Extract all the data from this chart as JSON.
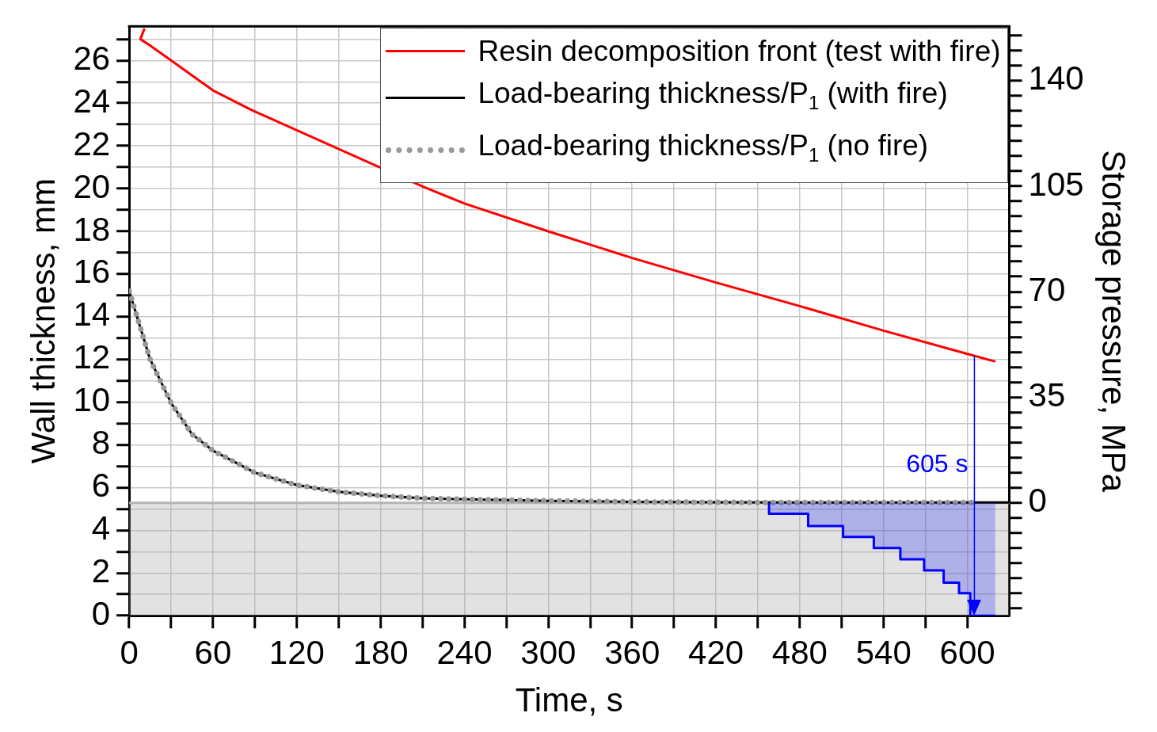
{
  "chart_data": {
    "type": "line",
    "xlabel": "Time, s",
    "ylabel": "Wall thickness, mm",
    "y2label": "Storage pressure, MPa",
    "xlim": [
      0,
      630
    ],
    "ylim": [
      0,
      27.6
    ],
    "y2lim": [
      -37.4,
      158
    ],
    "xticks": [
      0,
      {
        "value": 30,
        "label": null
      },
      60,
      {
        "value": 90,
        "label": null
      },
      120,
      {
        "value": 150,
        "label": null
      },
      180,
      {
        "value": 210,
        "label": null
      },
      240,
      {
        "value": 270,
        "label": null
      },
      300,
      {
        "value": 330,
        "label": null
      },
      360,
      {
        "value": 390,
        "label": null
      },
      420,
      {
        "value": 450,
        "label": null
      },
      480,
      {
        "value": 510,
        "label": null
      },
      540,
      {
        "value": 570,
        "label": null
      },
      600
    ],
    "yticks": [
      0,
      {
        "value": 1,
        "label": null
      },
      2,
      {
        "value": 3,
        "label": null
      },
      4,
      {
        "value": 5,
        "label": null
      },
      6,
      {
        "value": 7,
        "label": null
      },
      8,
      {
        "value": 9,
        "label": null
      },
      10,
      {
        "value": 11,
        "label": null
      },
      12,
      {
        "value": 13,
        "label": null
      },
      14,
      {
        "value": 15,
        "label": null
      },
      16,
      {
        "value": 17,
        "label": null
      },
      18,
      {
        "value": 19,
        "label": null
      },
      20,
      {
        "value": 21,
        "label": null
      },
      22,
      {
        "value": 23,
        "label": null
      },
      24,
      {
        "value": 25,
        "label": null
      },
      26,
      {
        "value": 27,
        "label": null
      }
    ],
    "y2ticks": [
      {
        "value": -35,
        "label": null
      },
      {
        "value": -30,
        "label": null
      },
      {
        "value": -25,
        "label": null
      },
      {
        "value": -20,
        "label": null
      },
      {
        "value": -15,
        "label": null
      },
      {
        "value": -10,
        "label": null
      },
      {
        "value": -5,
        "label": null
      },
      0,
      {
        "value": 5,
        "label": null
      },
      {
        "value": 10,
        "label": null
      },
      {
        "value": 15,
        "label": null
      },
      {
        "value": 20,
        "label": null
      },
      {
        "value": 25,
        "label": null
      },
      {
        "value": 30,
        "label": null
      },
      35,
      {
        "value": 40,
        "label": null
      },
      {
        "value": 45,
        "label": null
      },
      {
        "value": 50,
        "label": null
      },
      {
        "value": 55,
        "label": null
      },
      {
        "value": 60,
        "label": null
      },
      {
        "value": 65,
        "label": null
      },
      70,
      {
        "value": 75,
        "label": null
      },
      {
        "value": 80,
        "label": null
      },
      {
        "value": 85,
        "label": null
      },
      {
        "value": 90,
        "label": null
      },
      {
        "value": 95,
        "label": null
      },
      {
        "value": 100,
        "label": null
      },
      105,
      {
        "value": 110,
        "label": null
      },
      {
        "value": 115,
        "label": null
      },
      {
        "value": 120,
        "label": null
      },
      {
        "value": 125,
        "label": null
      },
      {
        "value": 130,
        "label": null
      },
      {
        "value": 135,
        "label": null
      },
      140,
      {
        "value": 145,
        "label": null
      },
      {
        "value": 150,
        "label": null
      },
      {
        "value": 155,
        "label": null
      }
    ],
    "grid": true,
    "legend": "top right",
    "series": [
      {
        "name": "Resin decomposition front (test with fire)",
        "color": "#ff0000",
        "line_style": "solid",
        "x": [
          11,
          8,
          15,
          30,
          60,
          87,
          120,
          150,
          180,
          210,
          240,
          300,
          360,
          420,
          480,
          540,
          600,
          620
        ],
        "values": [
          27.5,
          27.0,
          26.7,
          26.0,
          24.6,
          23.7,
          null,
          null,
          null,
          20.1,
          19.3,
          18.0,
          16.75,
          15.6,
          14.5,
          13.35,
          12.26,
          11.9
        ]
      },
      {
        "name": "Load-bearing thickness/P$_{1}$ (with fire)",
        "color": "#000000",
        "line_style": "solid",
        "x": [
          0,
          15,
          30,
          45,
          60,
          90,
          120,
          150,
          180,
          210,
          240,
          300,
          360,
          420,
          480,
          540,
          630
        ],
        "values": [
          15.2,
          12.0,
          9.96,
          8.5,
          7.73,
          6.7,
          6.12,
          5.8,
          5.62,
          5.5,
          5.45,
          5.38,
          5.33,
          5.31,
          5.3,
          5.3,
          5.3
        ]
      },
      {
        "name": "Load-bearing thickness/P$_{1}$ (no fire)",
        "color": "#999999",
        "line_style": "dotted",
        "x": [
          0,
          15,
          30,
          45,
          60,
          90,
          120,
          150,
          180,
          210,
          240,
          300,
          360,
          420,
          480,
          540,
          606
        ],
        "values": [
          15.2,
          12.0,
          9.96,
          8.5,
          7.73,
          6.7,
          6.12,
          5.8,
          5.62,
          5.5,
          5.45,
          5.38,
          5.33,
          5.31,
          5.3,
          5.3,
          5.3
        ]
      },
      {
        "type": "step",
        "color": "#0000ff",
        "line_style": "solid",
        "x": [
          458,
          458,
          486,
          511,
          533,
          552,
          569,
          583,
          594,
          602,
          620
        ],
        "values": [
          5.28,
          4.77,
          4.2,
          3.69,
          3.17,
          2.64,
          2.12,
          1.55,
          1.06,
          0,
          0
        ]
      }
    ],
    "ref_lines": [
      {
        "axis": "y",
        "value": 5.28,
        "color": "#b4b4b4"
      },
      {
        "axis": "x",
        "value": 605,
        "label": "605 s",
        "color": "#0000ff"
      }
    ],
    "bands": [
      {
        "axis": "y",
        "from": 0,
        "to": 5.28,
        "color": "#a8a8a8"
      }
    ]
  }
}
